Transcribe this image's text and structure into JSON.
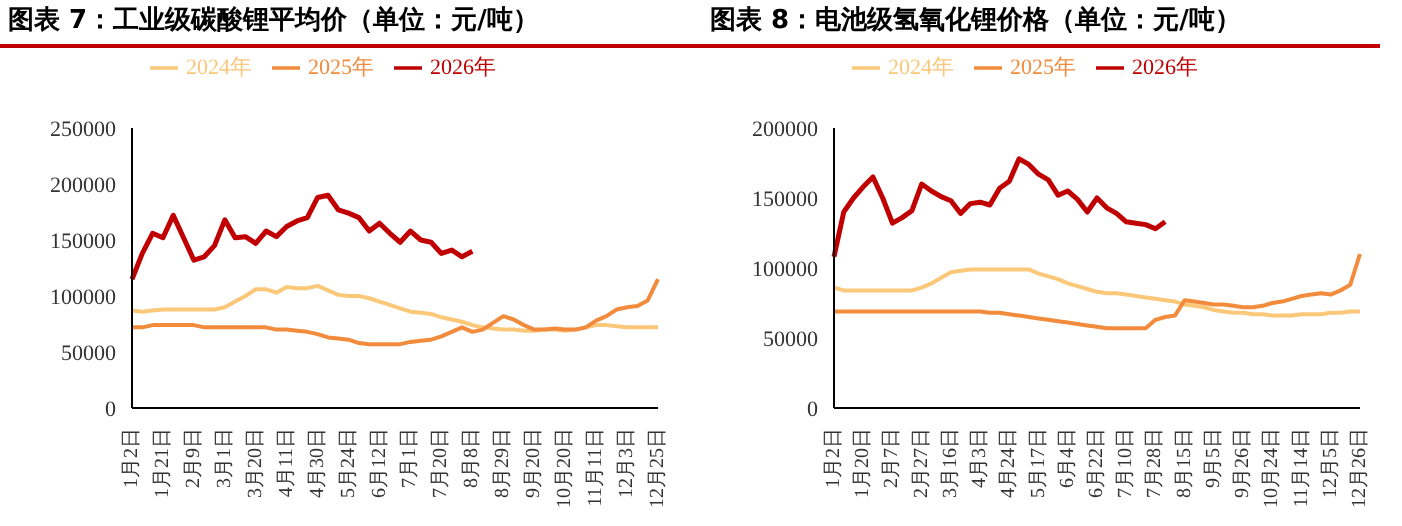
{
  "chart_data": [
    {
      "type": "line",
      "title": "图表 7：工业级碳酸锂平均价（单位：元/吨）",
      "legend": "top",
      "grid": false,
      "marker": "none",
      "categories": [
        "1月2日",
        null,
        null,
        "1月21日",
        null,
        null,
        "2月9日",
        null,
        null,
        "3月1日",
        null,
        null,
        "3月20日",
        null,
        null,
        "4月11日",
        null,
        null,
        "4月30日",
        null,
        null,
        "5月24日",
        null,
        null,
        "6月12日",
        null,
        null,
        "7月1日",
        null,
        null,
        "7月20日",
        null,
        null,
        "8月8日",
        null,
        null,
        "8月29日",
        null,
        null,
        "9月20日",
        null,
        null,
        "10月20日",
        null,
        null,
        "11月11日",
        null,
        null,
        "12月3日",
        null,
        null,
        "12月25日"
      ],
      "ylim": [
        0,
        250000
      ],
      "yticks": [
        0,
        50000,
        100000,
        150000,
        200000,
        250000
      ],
      "series": [
        {
          "name": "2024年",
          "color": "#fac878",
          "values": [
            87000,
            86000,
            87000,
            88000,
            88000,
            88000,
            88000,
            88000,
            88000,
            90000,
            95000,
            100000,
            106000,
            106000,
            103000,
            108000,
            107000,
            107000,
            109000,
            105000,
            101000,
            100000,
            100000,
            98000,
            95000,
            92000,
            89000,
            86000,
            85000,
            84000,
            81000,
            79000,
            77000,
            74000,
            72000,
            71000,
            70000,
            70000,
            69000,
            69000,
            70000,
            70000,
            69000,
            70000,
            72000,
            74000,
            74000,
            73000,
            72000,
            72000,
            72000,
            72000
          ]
        },
        {
          "name": "2025年",
          "color": "#f28b3c",
          "values": [
            72000,
            72000,
            74000,
            74000,
            74000,
            74000,
            74000,
            72000,
            72000,
            72000,
            72000,
            72000,
            72000,
            72000,
            70000,
            70000,
            69000,
            68000,
            66000,
            63000,
            62000,
            61000,
            58000,
            57000,
            57000,
            57000,
            57000,
            59000,
            60000,
            61000,
            64000,
            68000,
            72000,
            68000,
            70000,
            76000,
            82000,
            79000,
            74000,
            70000,
            70000,
            71000,
            70000,
            70000,
            72000,
            78000,
            82000,
            88000,
            90000,
            91000,
            96000,
            115000
          ]
        },
        {
          "name": "2026年",
          "color": "#c00000",
          "values": [
            115000,
            138000,
            156000,
            152000,
            172000,
            152000,
            132000,
            135000,
            145000,
            168000,
            152000,
            153000,
            147000,
            158000,
            153000,
            162000,
            167000,
            170000,
            188000,
            190000,
            177000,
            174000,
            170000,
            158000,
            165000,
            156000,
            148000,
            158000,
            150000,
            148000,
            138000,
            141000,
            135000,
            140000,
            null,
            null,
            null,
            null,
            null,
            null,
            null,
            null,
            null,
            null,
            null,
            null,
            null,
            null,
            null,
            null,
            null,
            null
          ]
        }
      ]
    },
    {
      "type": "line",
      "title": "图表 8：电池级氢氧化锂价格（单位：元/吨）",
      "legend": "top",
      "grid": false,
      "marker": "none",
      "categories": [
        "1月2日",
        null,
        null,
        "1月20日",
        null,
        null,
        "2月7日",
        null,
        null,
        "2月27日",
        null,
        null,
        "3月16日",
        null,
        null,
        "4月3日",
        null,
        null,
        "4月24日",
        null,
        null,
        "5月17日",
        null,
        null,
        "6月4日",
        null,
        null,
        "6月22日",
        null,
        null,
        "7月10日",
        null,
        null,
        "7月28日",
        null,
        null,
        "8月15日",
        null,
        null,
        "9月5日",
        null,
        null,
        "9月26日",
        null,
        null,
        "10月24日",
        null,
        null,
        "11月14日",
        null,
        null,
        "12月5日",
        null,
        null,
        "12月26日"
      ],
      "ylim": [
        0,
        200000
      ],
      "yticks": [
        0,
        50000,
        100000,
        150000,
        200000
      ],
      "series": [
        {
          "name": "2024年",
          "color": "#fac878",
          "values": [
            86000,
            84000,
            84000,
            84000,
            84000,
            84000,
            84000,
            84000,
            84000,
            86000,
            89000,
            93000,
            97000,
            98000,
            99000,
            99000,
            99000,
            99000,
            99000,
            99000,
            99000,
            96000,
            94000,
            92000,
            89000,
            87000,
            85000,
            83000,
            82000,
            82000,
            81000,
            80000,
            79000,
            78000,
            77000,
            76000,
            74000,
            73000,
            72000,
            70000,
            69000,
            68000,
            68000,
            67000,
            67000,
            66000,
            66000,
            66000,
            67000,
            67000,
            67000,
            68000,
            68000,
            69000,
            69000
          ]
        },
        {
          "name": "2025年",
          "color": "#f28b3c",
          "values": [
            69000,
            69000,
            69000,
            69000,
            69000,
            69000,
            69000,
            69000,
            69000,
            69000,
            69000,
            69000,
            69000,
            69000,
            69000,
            69000,
            68000,
            68000,
            67000,
            66000,
            65000,
            64000,
            63000,
            62000,
            61000,
            60000,
            59000,
            58000,
            57000,
            57000,
            57000,
            57000,
            57000,
            63000,
            65000,
            66000,
            77000,
            76000,
            75000,
            74000,
            74000,
            73000,
            72000,
            72000,
            73000,
            75000,
            76000,
            78000,
            80000,
            81000,
            82000,
            81000,
            84000,
            88000,
            110000
          ]
        },
        {
          "name": "2026年",
          "color": "#c00000",
          "values": [
            108000,
            140000,
            150000,
            158000,
            165000,
            150000,
            132000,
            136000,
            141000,
            160000,
            155000,
            151000,
            148000,
            139000,
            146000,
            147000,
            145000,
            157000,
            162000,
            178000,
            174000,
            167000,
            163000,
            152000,
            155000,
            149000,
            140000,
            150000,
            143000,
            139000,
            133000,
            132000,
            131000,
            128000,
            133000,
            null,
            null,
            null,
            null,
            null,
            null,
            null,
            null,
            null,
            null,
            null,
            null,
            null,
            null,
            null,
            null,
            null,
            null,
            null,
            null
          ]
        }
      ]
    }
  ]
}
